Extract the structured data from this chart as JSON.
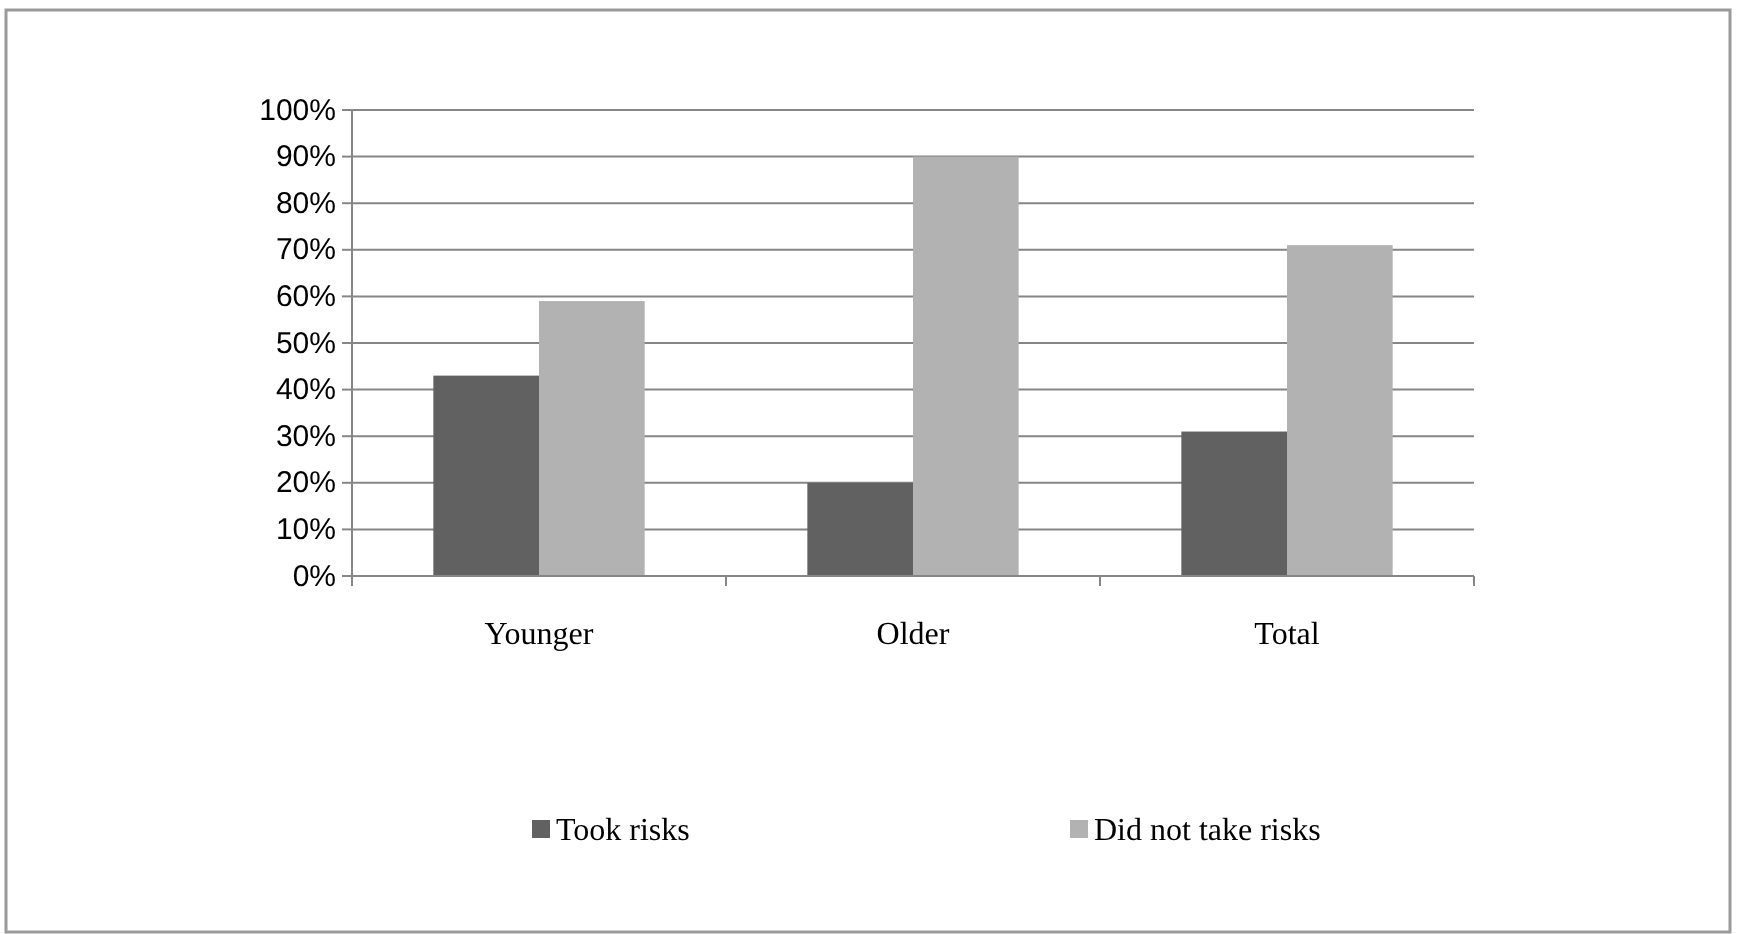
{
  "chart_data": {
    "type": "bar",
    "categories": [
      "Younger",
      "Older",
      "Total"
    ],
    "series": [
      {
        "name": "Took risks",
        "color": "#616161",
        "values": [
          43,
          20,
          31
        ]
      },
      {
        "name": "Did not take risks",
        "color": "#b2b2b2",
        "values": [
          59,
          90,
          71
        ]
      }
    ],
    "ylim": [
      0,
      100
    ],
    "yticks": [
      {
        "value": 0,
        "label": "0%"
      },
      {
        "value": 10,
        "label": "10%"
      },
      {
        "value": 20,
        "label": "20%"
      },
      {
        "value": 30,
        "label": "30%"
      },
      {
        "value": 40,
        "label": "40%"
      },
      {
        "value": 50,
        "label": "50%"
      },
      {
        "value": 60,
        "label": "60%"
      },
      {
        "value": 70,
        "label": "70%"
      },
      {
        "value": 80,
        "label": "80%"
      },
      {
        "value": 90,
        "label": "90%"
      },
      {
        "value": 100,
        "label": "100%"
      }
    ],
    "grid": "y",
    "legend": "bottom"
  }
}
